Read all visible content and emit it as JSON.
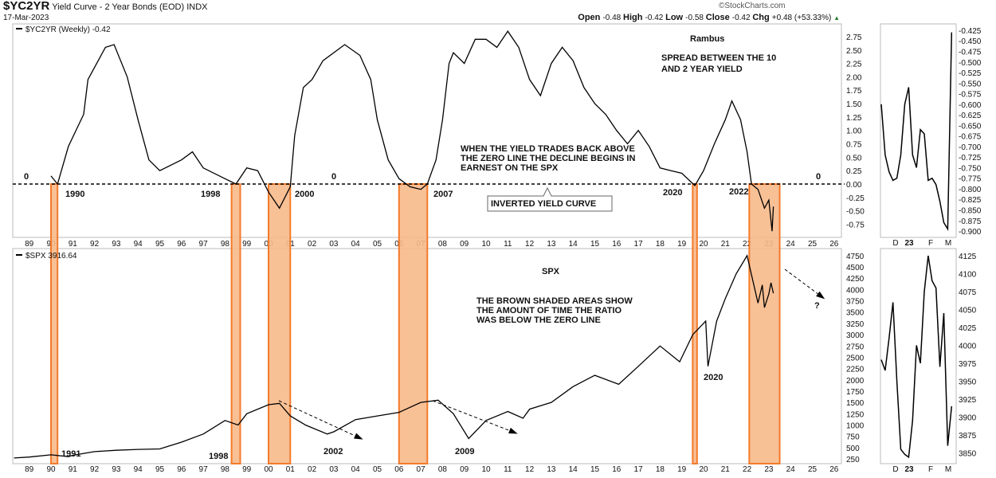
{
  "header": {
    "symbol": "$YC2YR",
    "description": "Yield Curve - 2 Year Bonds (EOD)",
    "exchange": "INDX",
    "date": "17-Mar-2023",
    "watermark": "©StockCharts.com",
    "ohlc": [
      {
        "k": "Open",
        "v": "-0.48"
      },
      {
        "k": "High",
        "v": "-0.42"
      },
      {
        "k": "Low",
        "v": "-0.58"
      },
      {
        "k": "Close",
        "v": "-0.42"
      },
      {
        "k": "Chg",
        "v": "+0.48 (+53.33%)"
      }
    ],
    "chg_direction": "up",
    "up_color": "#2e7d32"
  },
  "chart_data": [
    {
      "type": "line",
      "legend": "$YC2YR (Weekly) -0.42",
      "ylim": [
        -0.95,
        2.95
      ],
      "yticks": [
        "2.75",
        "2.50",
        "2.25",
        "2.00",
        "1.75",
        "1.50",
        "1.25",
        "1.00",
        "0.75",
        "0.50",
        "0.25",
        "0.00",
        "-0.25",
        "-0.50",
        "-0.75"
      ],
      "x": [
        1990.0,
        1990.3,
        1990.8,
        1991.5,
        1991.7,
        1992.5,
        1992.9,
        1993.5,
        1994,
        1994.5,
        1995,
        1996,
        1996.5,
        1997,
        1998,
        1998.5,
        1999,
        1999.5,
        2000.0,
        2000.5,
        2001.0,
        2001.2,
        2001.6,
        2002,
        2002.5,
        2003.5,
        2004.2,
        2004.7,
        2005,
        2005.5,
        2006,
        2006.5,
        2007,
        2007.3,
        2007.7,
        2008,
        2008.3,
        2008.5,
        2009,
        2009.5,
        2010,
        2010.5,
        2011,
        2011.5,
        2012,
        2012.5,
        2013,
        2013.5,
        2014,
        2014.5,
        2015,
        2015.5,
        2016,
        2016.5,
        2017,
        2017.5,
        2018,
        2018.5,
        2019,
        2019.6,
        2020,
        2020.5,
        2021,
        2021.3,
        2021.7,
        2022,
        2022.2,
        2022.5,
        2022.8,
        2023.0,
        2023.15,
        2023.21
      ],
      "y": [
        0.15,
        0.0,
        0.7,
        1.3,
        1.95,
        2.55,
        2.6,
        2.0,
        1.2,
        0.45,
        0.25,
        0.45,
        0.6,
        0.3,
        0.1,
        0.0,
        0.3,
        0.25,
        -0.15,
        -0.45,
        -0.05,
        0.9,
        1.8,
        1.95,
        2.3,
        2.6,
        2.4,
        1.95,
        1.2,
        0.45,
        0.1,
        -0.05,
        -0.1,
        0.0,
        0.45,
        1.2,
        2.25,
        2.45,
        2.25,
        2.7,
        2.7,
        2.55,
        2.85,
        2.55,
        1.95,
        1.65,
        2.25,
        2.55,
        2.3,
        1.8,
        1.5,
        1.3,
        1.0,
        0.75,
        1.0,
        0.7,
        0.3,
        0.25,
        0.2,
        -0.03,
        0.25,
        0.75,
        1.2,
        1.55,
        1.2,
        0.6,
        0.0,
        -0.1,
        -0.45,
        -0.3,
        -0.88,
        -0.42
      ],
      "zero_line": true,
      "annotations": [
        "0",
        "0",
        "0",
        "1990",
        "1998",
        "2000",
        "2007",
        "2020",
        "2022",
        "Rambus",
        "SPREAD BETWEEN THE 10",
        "AND 2 YEAR YIELD",
        "WHEN THE YIELD TRADES BACK ABOVE",
        "THE ZERO LINE THE DECLINE BEGINS IN",
        "EARNEST ON THE SPX",
        "INVERTED YIELD CURVE"
      ]
    },
    {
      "type": "line",
      "legend": "$SPX 3916.64",
      "ylim": [
        150,
        4900
      ],
      "yticks": [
        "4750",
        "4500",
        "4250",
        "4000",
        "3750",
        "3500",
        "3250",
        "3000",
        "2750",
        "2500",
        "2250",
        "2000",
        "1750",
        "1500",
        "1250",
        "1000",
        "750",
        "500",
        "250"
      ],
      "x": [
        1988.3,
        1989,
        1990,
        1990.8,
        1991,
        1992,
        1993,
        1994,
        1995,
        1996,
        1997,
        1998,
        1998.6,
        1999,
        2000,
        2000.5,
        2001,
        2001.7,
        2002.7,
        2003,
        2004,
        2005,
        2006,
        2007,
        2007.8,
        2008.5,
        2009.2,
        2010,
        2011,
        2011.7,
        2012,
        2013,
        2014,
        2015,
        2016.1,
        2017,
        2018,
        2018.9,
        2019.5,
        2020.1,
        2020.2,
        2020.6,
        2021,
        2021.5,
        2022,
        2022.5,
        2022.7,
        2022.8,
        2023,
        2023.1,
        2023.21
      ],
      "y": [
        270,
        290,
        340,
        300,
        330,
        410,
        440,
        460,
        470,
        620,
        800,
        1100,
        1000,
        1250,
        1450,
        1480,
        1200,
        1000,
        800,
        850,
        1120,
        1200,
        1280,
        1500,
        1550,
        1250,
        700,
        1100,
        1300,
        1150,
        1350,
        1500,
        1850,
        2100,
        1900,
        2300,
        2750,
        2400,
        3000,
        3300,
        2300,
        3300,
        3800,
        4350,
        4750,
        3700,
        4100,
        3600,
        3900,
        4150,
        3916
      ],
      "annotations": [
        "SPX",
        "THE BROWN SHADED AREAS SHOW",
        "THE AMOUNT OF TIME THE RATIO",
        "WAS BELOW THE ZERO LINE",
        "2020",
        "1998",
        "1991",
        "2002",
        "2009",
        "?"
      ]
    },
    {
      "type": "line",
      "panel": "yield-detail",
      "ylim": [
        -0.915,
        -0.41
      ],
      "yticks": [
        "-0.425",
        "-0.450",
        "-0.475",
        "-0.500",
        "-0.525",
        "-0.550",
        "-0.575",
        "-0.600",
        "-0.625",
        "-0.650",
        "-0.675",
        "-0.700",
        "-0.725",
        "-0.750",
        "-0.775",
        "-0.800",
        "-0.825",
        "-0.850",
        "-0.875",
        "-0.900"
      ],
      "y": [
        -0.6,
        -0.72,
        -0.76,
        -0.78,
        -0.775,
        -0.72,
        -0.6,
        -0.56,
        -0.72,
        -0.75,
        -0.66,
        -0.67,
        -0.78,
        -0.775,
        -0.79,
        -0.83,
        -0.88,
        -0.895,
        -0.43
      ]
    },
    {
      "type": "line",
      "panel": "spx-detail",
      "ylim": [
        3835,
        4135
      ],
      "yticks": [
        "4125",
        "4100",
        "4075",
        "4050",
        "4025",
        "4000",
        "3975",
        "3950",
        "3925",
        "3900",
        "3875",
        "3850"
      ],
      "y": [
        3980,
        3965,
        4010,
        4060,
        3950,
        3855,
        3848,
        3844,
        3895,
        4000,
        3975,
        4075,
        4125,
        4090,
        4080,
        3970,
        4045,
        3860,
        3915
      ]
    }
  ],
  "x_axis": {
    "labels": [
      "89",
      "90",
      "91",
      "92",
      "93",
      "94",
      "95",
      "96",
      "97",
      "98",
      "99",
      "00",
      "01",
      "02",
      "03",
      "04",
      "05",
      "06",
      "07",
      "08",
      "09",
      "10",
      "11",
      "12",
      "13",
      "14",
      "15",
      "16",
      "17",
      "18",
      "19",
      "20",
      "21",
      "22",
      "23",
      "24",
      "25",
      "26"
    ],
    "detail_labels": [
      "D",
      "23",
      "F",
      "M"
    ]
  },
  "inversion_periods": [
    [
      1990.0,
      1990.3
    ],
    [
      1998.3,
      1998.7
    ],
    [
      2000.0,
      2001.0
    ],
    [
      2006.0,
      2007.3
    ],
    [
      2019.5,
      2019.7
    ],
    [
      2022.1,
      2023.5
    ]
  ],
  "colors": {
    "shade_fill": "#f7b98a",
    "shade_stroke": "#f47a2a",
    "line": "#000000",
    "frame": "#bbbbbb"
  }
}
